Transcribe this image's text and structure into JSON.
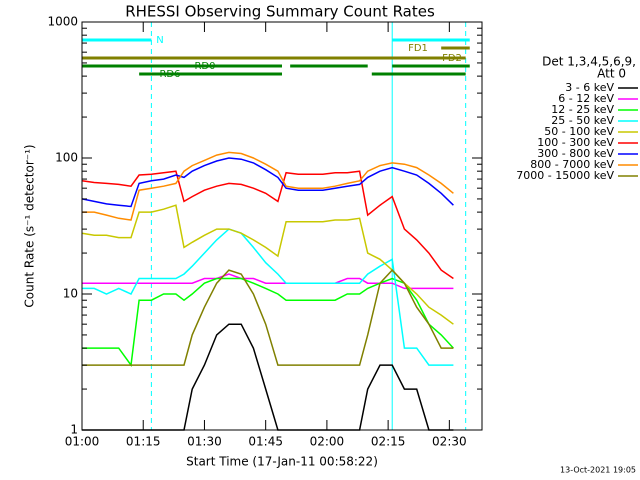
{
  "chart_data": {
    "type": "line",
    "title": "RHESSI Observing Summary Count Rates",
    "x_label": "Start Time (17-Jan-11 00:58:22)",
    "y_label": "Count Rate (s⁻¹ detector⁻¹)",
    "footer": "13-Oct-2021 19:05",
    "y_log": true,
    "xlim": [
      "01:00",
      "02:38"
    ],
    "xticks": [
      "01:00",
      "01:15",
      "01:30",
      "01:45",
      "02:00",
      "02:15",
      "02:30"
    ],
    "ylim": [
      1,
      1000
    ],
    "yticks": [
      1,
      10,
      100,
      1000
    ],
    "legend_title": [
      "Det 1,3,4,5,6,9,",
      "Att 0"
    ],
    "x": [
      "01:00",
      "01:03",
      "01:06",
      "01:09",
      "01:12",
      "01:14",
      "01:17",
      "01:20",
      "01:23",
      "01:25",
      "01:27",
      "01:30",
      "01:33",
      "01:36",
      "01:39",
      "01:42",
      "01:45",
      "01:48",
      "01:50",
      "01:53",
      "01:56",
      "01:59",
      "02:02",
      "02:05",
      "02:08",
      "02:10",
      "02:13",
      "02:16",
      "02:19",
      "02:22",
      "02:25",
      "02:28",
      "02:31"
    ],
    "series": [
      {
        "name": "3 - 6 keV",
        "color": "#000000",
        "values": [
          1,
          1,
          1,
          1,
          1,
          1,
          1,
          1,
          1,
          1,
          2,
          3,
          5,
          6,
          6,
          4,
          2,
          1,
          1,
          1,
          1,
          1,
          1,
          1,
          1,
          2,
          3,
          3,
          2,
          2,
          1,
          1,
          1
        ]
      },
      {
        "name": "6 - 12 keV",
        "color": "#ff00ff",
        "values": [
          12,
          12,
          12,
          12,
          12,
          12,
          12,
          12,
          12,
          12,
          12,
          13,
          13,
          14,
          13,
          13,
          12,
          12,
          12,
          12,
          12,
          12,
          12,
          13,
          13,
          12,
          12,
          12,
          11,
          11,
          11,
          11,
          11
        ]
      },
      {
        "name": "12 - 25 keV",
        "color": "#00ff00",
        "values": [
          4,
          4,
          4,
          4,
          3,
          9,
          9,
          10,
          10,
          9,
          10,
          12,
          13,
          13,
          13,
          12,
          11,
          10,
          9,
          9,
          9,
          9,
          9,
          10,
          10,
          11,
          12,
          13,
          12,
          9,
          6,
          5,
          4
        ]
      },
      {
        "name": "25 - 50 keV",
        "color": "#00ffff",
        "values": [
          11,
          11,
          10,
          11,
          10,
          13,
          13,
          13,
          13,
          14,
          16,
          20,
          25,
          30,
          28,
          22,
          17,
          14,
          12,
          12,
          12,
          12,
          12,
          12,
          12,
          14,
          16,
          18,
          4,
          4,
          3,
          3,
          3
        ]
      },
      {
        "name": "50 - 100 keV",
        "color": "#c8c800",
        "values": [
          28,
          27,
          27,
          26,
          26,
          40,
          40,
          42,
          45,
          22,
          24,
          27,
          30,
          30,
          28,
          25,
          22,
          19,
          34,
          34,
          34,
          34,
          35,
          35,
          36,
          20,
          18,
          15,
          12,
          10,
          8,
          7,
          6
        ]
      },
      {
        "name": "100 - 300 keV",
        "color": "#ff0000",
        "values": [
          68,
          66,
          65,
          64,
          62,
          75,
          76,
          78,
          80,
          48,
          52,
          58,
          62,
          65,
          64,
          60,
          55,
          48,
          78,
          76,
          76,
          76,
          78,
          78,
          80,
          38,
          45,
          52,
          30,
          25,
          20,
          15,
          13
        ]
      },
      {
        "name": "300 - 800 keV",
        "color": "#0000ff",
        "values": [
          50,
          48,
          46,
          45,
          44,
          65,
          68,
          70,
          75,
          72,
          80,
          88,
          95,
          100,
          98,
          92,
          82,
          72,
          60,
          58,
          58,
          58,
          60,
          62,
          64,
          72,
          80,
          85,
          80,
          75,
          65,
          55,
          45
        ]
      },
      {
        "name": "800 - 7000 keV",
        "color": "#ff8c00",
        "values": [
          40,
          40,
          38,
          36,
          35,
          58,
          60,
          62,
          65,
          80,
          88,
          96,
          105,
          110,
          108,
          100,
          90,
          80,
          62,
          60,
          60,
          60,
          62,
          65,
          68,
          80,
          88,
          92,
          90,
          85,
          75,
          65,
          55
        ]
      },
      {
        "name": "7000 - 15000 keV",
        "color": "#808000",
        "values": [
          3,
          3,
          3,
          3,
          3,
          3,
          3,
          3,
          3,
          3,
          5,
          8,
          12,
          15,
          14,
          10,
          6,
          3,
          3,
          3,
          3,
          3,
          3,
          3,
          3,
          5,
          12,
          15,
          12,
          8,
          6,
          4,
          4
        ]
      }
    ],
    "state_bars": [
      {
        "label": "N",
        "color": "#00ffff",
        "spans": [
          [
            "01:00",
            "01:17"
          ],
          [
            "02:16",
            "02:35"
          ]
        ]
      },
      {
        "label": "FD1",
        "color": "#808000",
        "spans": [
          [
            "02:28",
            "02:35"
          ]
        ]
      },
      {
        "label": "FD2",
        "color": "#808000",
        "spans": [
          [
            "01:00",
            "02:34"
          ]
        ]
      },
      {
        "label": "RD0",
        "color": "#008000",
        "spans": [
          [
            "01:00",
            "01:49"
          ],
          [
            "01:51",
            "02:10"
          ],
          [
            "02:16",
            "02:35"
          ]
        ]
      },
      {
        "label": "RD6",
        "color": "#008000",
        "spans": [
          [
            "01:14",
            "01:49"
          ],
          [
            "02:11",
            "02:34"
          ]
        ]
      }
    ],
    "vlines": [
      {
        "x": "01:00",
        "style": "solid",
        "color": "#00ffff"
      },
      {
        "x": "01:17",
        "style": "dashed",
        "color": "#00ffff"
      },
      {
        "x": "02:16",
        "style": "solid",
        "color": "#00ffff"
      },
      {
        "x": "02:34",
        "style": "dashed",
        "color": "#00ffff"
      }
    ]
  }
}
